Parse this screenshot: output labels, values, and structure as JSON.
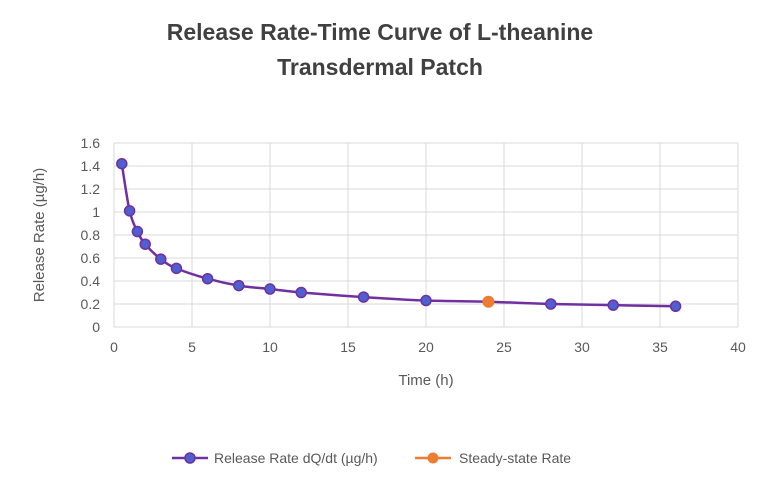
{
  "chart_data": {
    "type": "scatter",
    "title_lines": [
      "Release Rate-Time Curve of L-theanine",
      "Transdermal Patch"
    ],
    "xlabel": "Time (h)",
    "ylabel": "Release Rate (µg/h)",
    "xlim": [
      0,
      40
    ],
    "ylim": [
      0,
      1.6
    ],
    "x_ticks": [
      "0",
      "5",
      "10",
      "15",
      "20",
      "25",
      "30",
      "35",
      "40"
    ],
    "y_ticks": [
      "0",
      "0.2",
      "0.4",
      "0.6",
      "0.8",
      "1",
      "1.2",
      "1.4",
      "1.6"
    ],
    "grid": true,
    "legend_position": "bottom",
    "series": [
      {
        "name": "Release Rate dQ/dt (µg/h)",
        "color": "#7030A0",
        "marker_color": "#4F5FCF",
        "style": "smooth-line-with-markers",
        "x": [
          0.5,
          1,
          1.5,
          2,
          3,
          4,
          6,
          8,
          10,
          12,
          16,
          20,
          24,
          28,
          32,
          36
        ],
        "y": [
          1.42,
          1.01,
          0.83,
          0.72,
          0.59,
          0.51,
          0.42,
          0.36,
          0.33,
          0.3,
          0.26,
          0.23,
          0.22,
          0.2,
          0.19,
          0.18
        ]
      },
      {
        "name": "Steady-state Rate",
        "color": "#ED7D31",
        "style": "marker",
        "x": [
          24
        ],
        "y": [
          0.22
        ]
      }
    ]
  }
}
